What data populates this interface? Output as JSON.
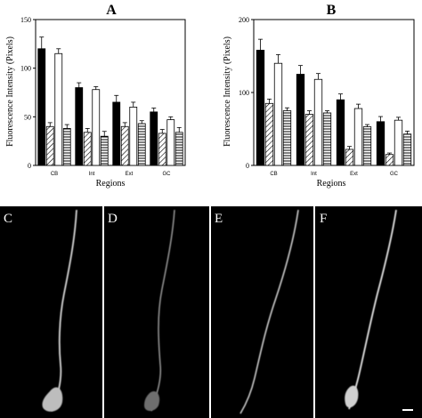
{
  "chart_data": [
    {
      "type": "bar",
      "panel": "A",
      "ylabel": "Fluorescence Intensity (Pixels)",
      "xlabel": "Regions",
      "categories": [
        "CB",
        "Int",
        "Ext",
        "GC"
      ],
      "ylim": [
        0,
        150
      ],
      "yticks": [
        0,
        50,
        100,
        150
      ],
      "series": [
        {
          "fill": "solid",
          "values": [
            120,
            80,
            65,
            55
          ],
          "errors": [
            12,
            5,
            7,
            4
          ]
        },
        {
          "fill": "diagonal",
          "values": [
            40,
            34,
            40,
            33
          ],
          "errors": [
            4,
            4,
            4,
            4
          ]
        },
        {
          "fill": "open",
          "values": [
            115,
            78,
            60,
            47
          ],
          "errors": [
            5,
            3,
            5,
            3
          ]
        },
        {
          "fill": "horizontal",
          "values": [
            38,
            30,
            43,
            34
          ],
          "errors": [
            4,
            5,
            3,
            5
          ]
        }
      ]
    },
    {
      "type": "bar",
      "panel": "B",
      "ylabel": "Fluorescence Intensity (Pixels)",
      "xlabel": "Regions",
      "categories": [
        "CB",
        "Int",
        "Ext",
        "GC"
      ],
      "ylim": [
        0,
        200
      ],
      "yticks": [
        0,
        100,
        200
      ],
      "series": [
        {
          "fill": "solid",
          "values": [
            158,
            125,
            90,
            60
          ],
          "errors": [
            15,
            12,
            8,
            7
          ]
        },
        {
          "fill": "diagonal",
          "values": [
            85,
            70,
            22,
            15
          ],
          "errors": [
            6,
            5,
            4,
            2
          ]
        },
        {
          "fill": "open",
          "values": [
            140,
            118,
            78,
            62
          ],
          "errors": [
            12,
            8,
            6,
            4
          ]
        },
        {
          "fill": "horizontal",
          "values": [
            75,
            72,
            53,
            43
          ],
          "errors": [
            4,
            3,
            3,
            4
          ]
        }
      ]
    }
  ],
  "images": [
    {
      "letter": "C"
    },
    {
      "letter": "D"
    },
    {
      "letter": "E"
    },
    {
      "letter": "F"
    }
  ]
}
